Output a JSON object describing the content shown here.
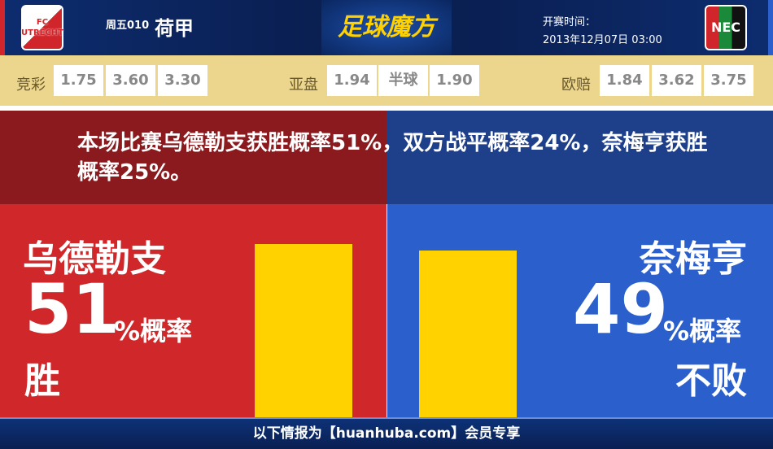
{
  "header": {
    "home_logo_text": "FC UTRECHT",
    "away_logo_text": "NEC",
    "round": "周五010",
    "league": "荷甲",
    "brand": "足球魔方",
    "kickoff_label": "开赛时间：",
    "kickoff_time": "2013年12月07日 03:00"
  },
  "odds": {
    "jingcai": {
      "label": "竞彩",
      "values": [
        "1.75",
        "3.60",
        "3.30"
      ]
    },
    "yapan": {
      "label": "亚盘",
      "values": [
        "1.94",
        "半球",
        "1.90"
      ]
    },
    "oupei": {
      "label": "欧赔",
      "values": [
        "1.84",
        "3.62",
        "3.75"
      ]
    }
  },
  "summary": "本场比赛乌德勒支获胜概率51%，双方战平概率24%，奈梅亨获胜概率25%。",
  "home": {
    "name": "乌德勒支",
    "percent": "51",
    "unit": "%概率",
    "outcome": "胜",
    "bar_value": 51
  },
  "away": {
    "name": "奈梅亨",
    "percent": "49",
    "unit": "%概率",
    "outcome": "不败",
    "bar_value": 49
  },
  "colors": {
    "home": "#d0282a",
    "away": "#2a5fcc",
    "bar": "#ffd200",
    "odds_bg": "#ecd58c"
  },
  "footer": "以下情报为【huanhuba.com】会员专享"
}
